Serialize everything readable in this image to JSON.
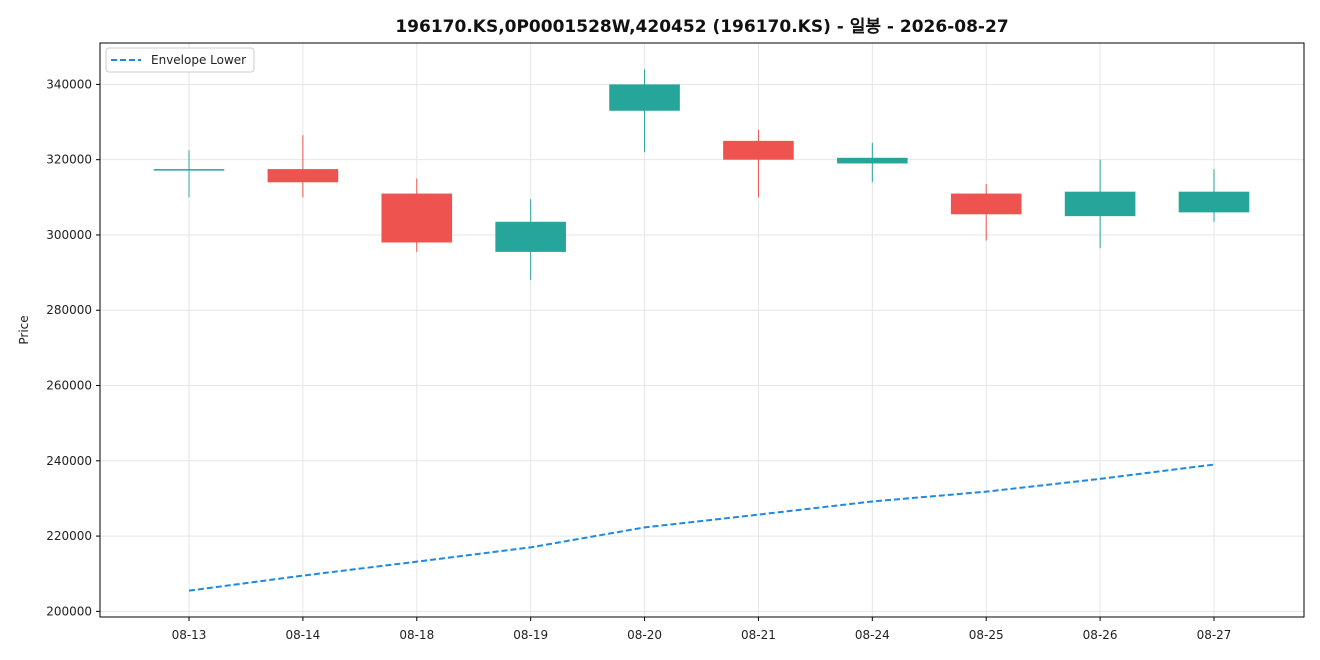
{
  "colors": {
    "up": "#26a69a",
    "down": "#ef5350",
    "envelope": "#1e88e5",
    "grid": "#e6e6e6",
    "axis": "#000000"
  },
  "chart_data": {
    "type": "candlestick",
    "title": "196170.KS,0P0001528W,420452 (196170.KS) - 일봉 - 2026-08-27",
    "xlabel": "",
    "ylabel": "Price",
    "ylim": [
      198500,
      351000
    ],
    "yticks": [
      200000,
      220000,
      240000,
      260000,
      280000,
      300000,
      320000,
      340000
    ],
    "grid": true,
    "legend": {
      "position": "top-left",
      "entries": [
        "Envelope Lower"
      ]
    },
    "categories": [
      "08-13",
      "08-14",
      "08-18",
      "08-19",
      "08-20",
      "08-21",
      "08-24",
      "08-25",
      "08-26",
      "08-27"
    ],
    "candles": [
      {
        "date": "08-13",
        "open": 317500,
        "high": 322500,
        "low": 310000,
        "close": 317500
      },
      {
        "date": "08-14",
        "open": 317500,
        "high": 326500,
        "low": 310000,
        "close": 314000
      },
      {
        "date": "08-18",
        "open": 311000,
        "high": 315000,
        "low": 295500,
        "close": 298000
      },
      {
        "date": "08-19",
        "open": 295500,
        "high": 309500,
        "low": 288000,
        "close": 303500
      },
      {
        "date": "08-20",
        "open": 333000,
        "high": 344000,
        "low": 322000,
        "close": 340000
      },
      {
        "date": "08-21",
        "open": 325000,
        "high": 328000,
        "low": 310000,
        "close": 320000
      },
      {
        "date": "08-24",
        "open": 319000,
        "high": 324500,
        "low": 314000,
        "close": 320500
      },
      {
        "date": "08-25",
        "open": 311000,
        "high": 313500,
        "low": 298500,
        "close": 305500
      },
      {
        "date": "08-26",
        "open": 305000,
        "high": 320000,
        "low": 296500,
        "close": 311500
      },
      {
        "date": "08-27",
        "open": 306000,
        "high": 317500,
        "low": 303500,
        "close": 311500
      }
    ],
    "series": [
      {
        "name": "Envelope Lower",
        "style": "dashed",
        "values": [
          205500,
          209500,
          213200,
          217000,
          222300,
          225700,
          229200,
          231800,
          235200,
          239000
        ]
      }
    ]
  }
}
